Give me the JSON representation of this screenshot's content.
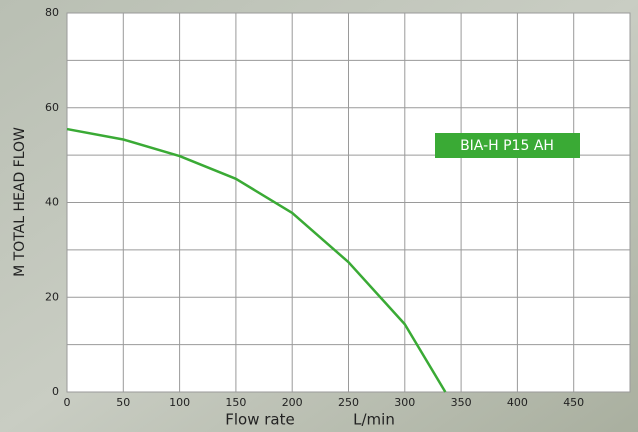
{
  "chart_data": {
    "type": "line",
    "x_label": "Flow rate",
    "x_unit": "L/min",
    "y_label": "M TOTAL HEAD FLOW",
    "annotation": "BIA-H P15 AH",
    "annotation_color": "#3aaa35",
    "series": [
      {
        "name": "BIA-H P15 AH",
        "color": "#3aaa35",
        "x": [
          0,
          50,
          100,
          150,
          200,
          250,
          300,
          336
        ],
        "values": [
          55.5,
          53.3,
          49.8,
          45,
          37.8,
          27.4,
          14.3,
          0
        ]
      }
    ],
    "xlim": [
      0,
      500
    ],
    "xticks": [
      0,
      50,
      100,
      150,
      200,
      250,
      300,
      350,
      400,
      450
    ],
    "ylim": [
      0,
      80
    ],
    "yticks": [
      0,
      20,
      40,
      60,
      80
    ],
    "grid": true
  }
}
